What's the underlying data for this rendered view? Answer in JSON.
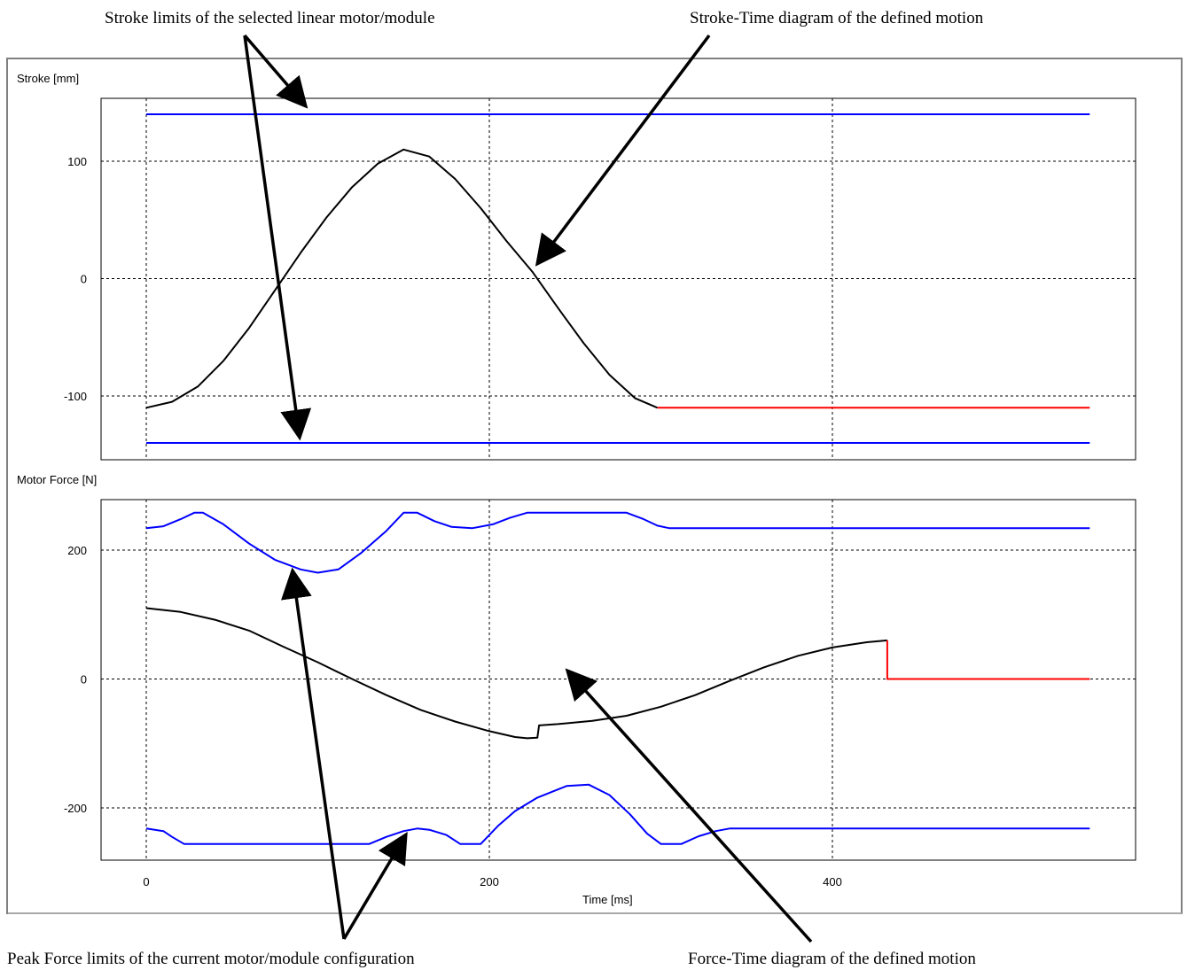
{
  "annotations": {
    "stroke_limits": "Stroke limits of the selected linear motor/module",
    "stroke_time": "Stroke-Time diagram of the defined motion",
    "peak_force": "Peak Force limits of the current motor/module configuration",
    "force_time": "Force-Time diagram of the defined motion"
  },
  "colors": {
    "limit": "#0000ff",
    "motion": "#000000",
    "idle": "#ff0000"
  },
  "chart_data": [
    {
      "type": "line",
      "ylabel": "Stroke [mm]",
      "xlim": [
        0,
        550
      ],
      "ylim": [
        -155,
        155
      ],
      "yticks": [
        -100,
        0,
        100
      ],
      "xticks": [
        0,
        200,
        400
      ],
      "grid": true,
      "series": [
        {
          "role": "limit-upper",
          "color": "#0000ff",
          "points": [
            [
              0,
              140
            ],
            [
              550,
              140
            ]
          ]
        },
        {
          "role": "limit-lower",
          "color": "#0000ff",
          "points": [
            [
              0,
              -140
            ],
            [
              550,
              -140
            ]
          ]
        },
        {
          "role": "motion",
          "color": "#000000",
          "points": [
            [
              0,
              -110
            ],
            [
              15,
              -105
            ],
            [
              30,
              -92
            ],
            [
              45,
              -70
            ],
            [
              60,
              -42
            ],
            [
              75,
              -10
            ],
            [
              90,
              22
            ],
            [
              105,
              52
            ],
            [
              120,
              78
            ],
            [
              135,
              98
            ],
            [
              150,
              110
            ],
            [
              165,
              104
            ],
            [
              180,
              85
            ],
            [
              195,
              60
            ],
            [
              210,
              32
            ],
            [
              225,
              6
            ],
            [
              240,
              -25
            ],
            [
              255,
              -55
            ],
            [
              270,
              -82
            ],
            [
              285,
              -102
            ],
            [
              298,
              -110
            ]
          ]
        },
        {
          "role": "idle",
          "color": "#ff0000",
          "points": [
            [
              298,
              -110
            ],
            [
              550,
              -110
            ]
          ]
        }
      ]
    },
    {
      "type": "line",
      "ylabel": "Motor Force [N]",
      "xlabel": "Time [ms]",
      "xlim": [
        0,
        550
      ],
      "ylim": [
        -280,
        280
      ],
      "yticks": [
        -200,
        0,
        200
      ],
      "xticks": [
        0,
        200,
        400
      ],
      "grid": true,
      "series": [
        {
          "role": "limit-upper",
          "color": "#0000ff",
          "points": [
            [
              0,
              234
            ],
            [
              10,
              237
            ],
            [
              20,
              248
            ],
            [
              28,
              258
            ],
            [
              33,
              258
            ],
            [
              45,
              240
            ],
            [
              60,
              210
            ],
            [
              75,
              185
            ],
            [
              90,
              170
            ],
            [
              100,
              165
            ],
            [
              112,
              170
            ],
            [
              125,
              195
            ],
            [
              140,
              230
            ],
            [
              150,
              258
            ],
            [
              158,
              258
            ],
            [
              168,
              245
            ],
            [
              178,
              236
            ],
            [
              190,
              234
            ],
            [
              202,
              240
            ],
            [
              212,
              250
            ],
            [
              222,
              258
            ],
            [
              280,
              258
            ],
            [
              290,
              248
            ],
            [
              298,
              238
            ],
            [
              305,
              234
            ],
            [
              550,
              234
            ]
          ]
        },
        {
          "role": "limit-lower",
          "color": "#0000ff",
          "points": [
            [
              0,
              -232
            ],
            [
              10,
              -236
            ],
            [
              15,
              -245
            ],
            [
              22,
              -256
            ],
            [
              130,
              -256
            ],
            [
              140,
              -245
            ],
            [
              150,
              -236
            ],
            [
              158,
              -232
            ],
            [
              165,
              -234
            ],
            [
              175,
              -242
            ],
            [
              183,
              -256
            ],
            [
              195,
              -256
            ],
            [
              205,
              -228
            ],
            [
              215,
              -205
            ],
            [
              228,
              -184
            ],
            [
              245,
              -166
            ],
            [
              258,
              -164
            ],
            [
              270,
              -180
            ],
            [
              282,
              -210
            ],
            [
              292,
              -240
            ],
            [
              300,
              -256
            ],
            [
              312,
              -256
            ],
            [
              322,
              -244
            ],
            [
              332,
              -236
            ],
            [
              340,
              -232
            ],
            [
              550,
              -232
            ]
          ]
        },
        {
          "role": "motion",
          "color": "#000000",
          "points": [
            [
              0,
              110
            ],
            [
              20,
              104
            ],
            [
              40,
              92
            ],
            [
              60,
              75
            ],
            [
              80,
              50
            ],
            [
              100,
              26
            ],
            [
              120,
              0
            ],
            [
              140,
              -25
            ],
            [
              160,
              -48
            ],
            [
              180,
              -66
            ],
            [
              200,
              -81
            ],
            [
              215,
              -90
            ],
            [
              222,
              -92
            ],
            [
              228,
              -91
            ],
            [
              229,
              -72
            ],
            [
              240,
              -70
            ],
            [
              260,
              -65
            ],
            [
              280,
              -57
            ],
            [
              300,
              -43
            ],
            [
              320,
              -25
            ],
            [
              340,
              -3
            ],
            [
              360,
              18
            ],
            [
              380,
              36
            ],
            [
              400,
              49
            ],
            [
              420,
              57
            ],
            [
              432,
              60
            ]
          ]
        },
        {
          "role": "idle",
          "color": "#ff0000",
          "points": [
            [
              432,
              60
            ],
            [
              432,
              0
            ],
            [
              550,
              0
            ]
          ]
        }
      ]
    }
  ]
}
